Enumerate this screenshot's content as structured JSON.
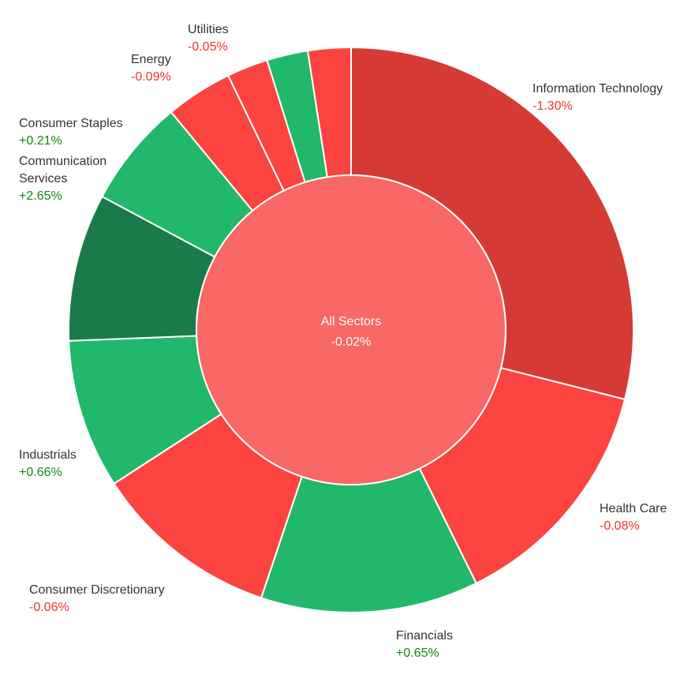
{
  "chart_data": {
    "type": "pie",
    "center": {
      "label": "All Sectors",
      "value": "-0.02%",
      "color": "#f96766"
    },
    "colors": {
      "dark_red": "#d63a35",
      "red": "#fb4440",
      "green": "#22b86b",
      "dark_green": "#1a7a4a",
      "positive_text": "#118811",
      "negative_text": "#ee3333"
    },
    "series": [
      {
        "name": "Information Technology",
        "change": "-1.30%",
        "weight": 29.5,
        "color": "#d63a35",
        "label": true
      },
      {
        "name": "Health Care",
        "change": "-0.08%",
        "weight": 14.0,
        "color": "#fb4440",
        "label": true
      },
      {
        "name": "Financials",
        "change": "+0.65%",
        "weight": 12.7,
        "color": "#22b86b",
        "label": true
      },
      {
        "name": "Consumer Discretionary",
        "change": "-0.06%",
        "weight": 10.9,
        "color": "#fb4440",
        "label": true
      },
      {
        "name": "Industrials",
        "change": "+0.66%",
        "weight": 8.7,
        "color": "#22b86b",
        "label": true
      },
      {
        "name": "",
        "change": "",
        "weight": 8.6,
        "color": "#1a7a4a",
        "label": false
      },
      {
        "name": "Communication Services",
        "change": "+2.65%",
        "weight": 6.3,
        "color": "#22b86b",
        "label": true
      },
      {
        "name": "Consumer Staples",
        "change": "+0.21%",
        "weight": 3.9,
        "color": "#fb4440",
        "label": true
      },
      {
        "name": "Energy",
        "change": "-0.09%",
        "weight": 2.4,
        "color": "#fb4440",
        "label": true
      },
      {
        "name": "Utilities",
        "change": "-0.05%",
        "weight": 2.4,
        "color": "#22b86b",
        "label": true
      },
      {
        "name": "",
        "change": "",
        "weight": 2.5,
        "color": "#fb4440",
        "label": false
      }
    ]
  }
}
